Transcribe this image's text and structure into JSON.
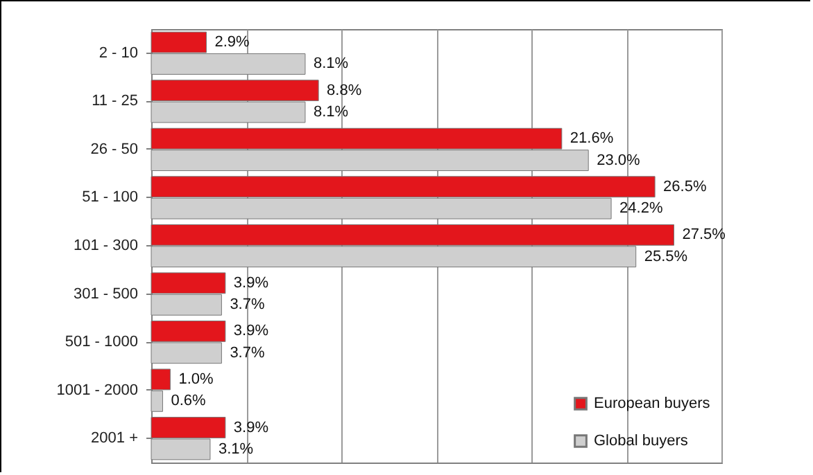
{
  "chart_data": {
    "type": "bar",
    "orientation": "horizontal",
    "categories": [
      "2 - 10",
      "11 - 25",
      "26 - 50",
      "51 - 100",
      "101 - 300",
      "301 - 500",
      "501 - 1000",
      "1001 - 2000",
      "2001 +"
    ],
    "series": [
      {
        "name": "European buyers",
        "color": "#e3161c",
        "values": [
          2.9,
          8.8,
          21.6,
          26.5,
          27.5,
          3.9,
          3.9,
          1.0,
          3.9
        ],
        "value_labels": [
          "2.9%",
          "8.8%",
          "21.6%",
          "26.5%",
          "27.5%",
          "3.9%",
          "3.9%",
          "1.0%",
          "3.9%"
        ]
      },
      {
        "name": "Global buyers",
        "color": "#cfcfcf",
        "values": [
          8.1,
          8.1,
          23.0,
          24.2,
          25.5,
          3.7,
          3.7,
          0.6,
          3.1
        ],
        "value_labels": [
          "8.1%",
          "8.1%",
          "23.0%",
          "24.2%",
          "25.5%",
          "3.7%",
          "3.7%",
          "0.6%",
          "3.1%"
        ]
      }
    ],
    "xlim": [
      0,
      30
    ],
    "xticks": [
      {
        "value": 0,
        "label": null
      },
      {
        "value": 5,
        "label": null
      },
      {
        "value": 10,
        "label": null
      },
      {
        "value": 15,
        "label": null
      },
      {
        "value": 20,
        "label": null
      },
      {
        "value": 25,
        "label": null
      },
      {
        "value": 30,
        "label": null
      }
    ],
    "grid": "x",
    "legend": "bottom right"
  }
}
